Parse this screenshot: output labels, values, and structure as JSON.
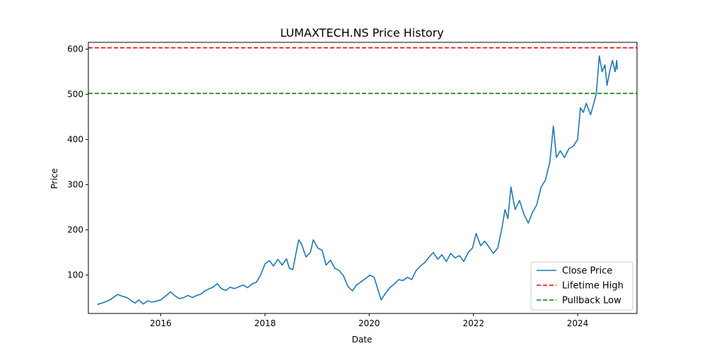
{
  "chart_data": {
    "type": "line",
    "title": "LUMAXTECH.NS Price History",
    "xlabel": "Date",
    "ylabel": "Price",
    "xlim": [
      "2014-08-12",
      "2025-02-20"
    ],
    "ylim": [
      15,
      615
    ],
    "x_ticks": [
      {
        "label": "2016",
        "date": "2016-01-01"
      },
      {
        "label": "2018",
        "date": "2018-01-01"
      },
      {
        "label": "2020",
        "date": "2020-01-01"
      },
      {
        "label": "2022",
        "date": "2022-01-01"
      },
      {
        "label": "2024",
        "date": "2024-01-01"
      }
    ],
    "y_ticks": [
      100,
      200,
      300,
      400,
      500,
      600
    ],
    "grid": false,
    "legend_position": "lower-right",
    "series": [
      {
        "name": "Close Price",
        "color": "#1f77b4",
        "style": "solid",
        "points": [
          [
            "2014-10-15",
            35
          ],
          [
            "2014-11-15",
            38
          ],
          [
            "2014-12-20",
            42
          ],
          [
            "2015-01-20",
            47
          ],
          [
            "2015-02-10",
            52
          ],
          [
            "2015-03-05",
            57
          ],
          [
            "2015-04-10",
            53
          ],
          [
            "2015-05-10",
            50
          ],
          [
            "2015-06-05",
            44
          ],
          [
            "2015-07-05",
            38
          ],
          [
            "2015-08-01",
            45
          ],
          [
            "2015-09-01",
            36
          ],
          [
            "2015-10-01",
            43
          ],
          [
            "2015-11-01",
            40
          ],
          [
            "2015-12-01",
            42
          ],
          [
            "2016-01-01",
            45
          ],
          [
            "2016-02-10",
            55
          ],
          [
            "2016-03-10",
            63
          ],
          [
            "2016-04-10",
            54
          ],
          [
            "2016-05-10",
            48
          ],
          [
            "2016-06-10",
            50
          ],
          [
            "2016-07-10",
            55
          ],
          [
            "2016-08-10",
            50
          ],
          [
            "2016-09-10",
            55
          ],
          [
            "2016-10-10",
            58
          ],
          [
            "2016-11-01",
            64
          ],
          [
            "2016-12-01",
            69
          ],
          [
            "2017-01-01",
            73
          ],
          [
            "2017-02-01",
            81
          ],
          [
            "2017-03-01",
            70
          ],
          [
            "2017-04-01",
            66
          ],
          [
            "2017-05-01",
            73
          ],
          [
            "2017-06-01",
            70
          ],
          [
            "2017-07-01",
            74
          ],
          [
            "2017-08-01",
            78
          ],
          [
            "2017-09-01",
            72
          ],
          [
            "2017-10-01",
            80
          ],
          [
            "2017-11-01",
            84
          ],
          [
            "2017-12-01",
            100
          ],
          [
            "2018-01-01",
            125
          ],
          [
            "2018-02-01",
            132
          ],
          [
            "2018-03-01",
            120
          ],
          [
            "2018-04-01",
            135
          ],
          [
            "2018-05-01",
            122
          ],
          [
            "2018-06-01",
            136
          ],
          [
            "2018-06-20",
            115
          ],
          [
            "2018-07-15",
            112
          ],
          [
            "2018-08-10",
            155
          ],
          [
            "2018-08-25",
            178
          ],
          [
            "2018-09-15",
            168
          ],
          [
            "2018-10-15",
            140
          ],
          [
            "2018-11-15",
            150
          ],
          [
            "2018-12-05",
            178
          ],
          [
            "2019-01-05",
            160
          ],
          [
            "2019-02-05",
            155
          ],
          [
            "2019-03-05",
            122
          ],
          [
            "2019-04-05",
            133
          ],
          [
            "2019-05-05",
            115
          ],
          [
            "2019-06-05",
            110
          ],
          [
            "2019-07-05",
            98
          ],
          [
            "2019-08-05",
            75
          ],
          [
            "2019-09-05",
            65
          ],
          [
            "2019-10-05",
            78
          ],
          [
            "2019-11-05",
            85
          ],
          [
            "2019-12-05",
            92
          ],
          [
            "2020-01-05",
            100
          ],
          [
            "2020-02-05",
            95
          ],
          [
            "2020-03-05",
            65
          ],
          [
            "2020-03-25",
            45
          ],
          [
            "2020-04-25",
            60
          ],
          [
            "2020-05-25",
            72
          ],
          [
            "2020-06-25",
            80
          ],
          [
            "2020-07-25",
            90
          ],
          [
            "2020-08-25",
            88
          ],
          [
            "2020-09-25",
            95
          ],
          [
            "2020-10-25",
            90
          ],
          [
            "2020-11-25",
            110
          ],
          [
            "2020-12-25",
            120
          ],
          [
            "2021-01-25",
            128
          ],
          [
            "2021-02-25",
            140
          ],
          [
            "2021-03-25",
            150
          ],
          [
            "2021-04-25",
            135
          ],
          [
            "2021-05-25",
            145
          ],
          [
            "2021-06-25",
            130
          ],
          [
            "2021-07-25",
            148
          ],
          [
            "2021-08-25",
            138
          ],
          [
            "2021-09-25",
            143
          ],
          [
            "2021-10-25",
            130
          ],
          [
            "2021-11-25",
            150
          ],
          [
            "2021-12-25",
            160
          ],
          [
            "2022-01-20",
            192
          ],
          [
            "2022-02-20",
            165
          ],
          [
            "2022-03-20",
            175
          ],
          [
            "2022-04-20",
            162
          ],
          [
            "2022-05-20",
            148
          ],
          [
            "2022-06-20",
            160
          ],
          [
            "2022-07-20",
            205
          ],
          [
            "2022-08-10",
            245
          ],
          [
            "2022-08-30",
            225
          ],
          [
            "2022-09-20",
            295
          ],
          [
            "2022-10-20",
            245
          ],
          [
            "2022-11-20",
            265
          ],
          [
            "2022-12-20",
            235
          ],
          [
            "2023-01-20",
            215
          ],
          [
            "2023-02-20",
            240
          ],
          [
            "2023-03-20",
            255
          ],
          [
            "2023-04-20",
            295
          ],
          [
            "2023-05-20",
            310
          ],
          [
            "2023-06-20",
            350
          ],
          [
            "2023-07-15",
            430
          ],
          [
            "2023-08-05",
            360
          ],
          [
            "2023-09-01",
            375
          ],
          [
            "2023-10-01",
            360
          ],
          [
            "2023-11-01",
            380
          ],
          [
            "2023-12-01",
            385
          ],
          [
            "2024-01-01",
            400
          ],
          [
            "2024-01-20",
            470
          ],
          [
            "2024-02-10",
            460
          ],
          [
            "2024-03-01",
            480
          ],
          [
            "2024-04-01",
            455
          ],
          [
            "2024-05-10",
            500
          ],
          [
            "2024-06-01",
            585
          ],
          [
            "2024-06-20",
            550
          ],
          [
            "2024-07-10",
            565
          ],
          [
            "2024-07-25",
            520
          ],
          [
            "2024-08-15",
            555
          ],
          [
            "2024-09-01",
            575
          ],
          [
            "2024-09-20",
            550
          ],
          [
            "2024-10-01",
            575
          ],
          [
            "2024-10-05",
            555
          ]
        ]
      },
      {
        "name": "Lifetime High",
        "color": "#ff0000",
        "style": "dashed",
        "hline": 603
      },
      {
        "name": "Pullback Low",
        "color": "#008000",
        "style": "dashed",
        "hline": 502
      }
    ]
  }
}
